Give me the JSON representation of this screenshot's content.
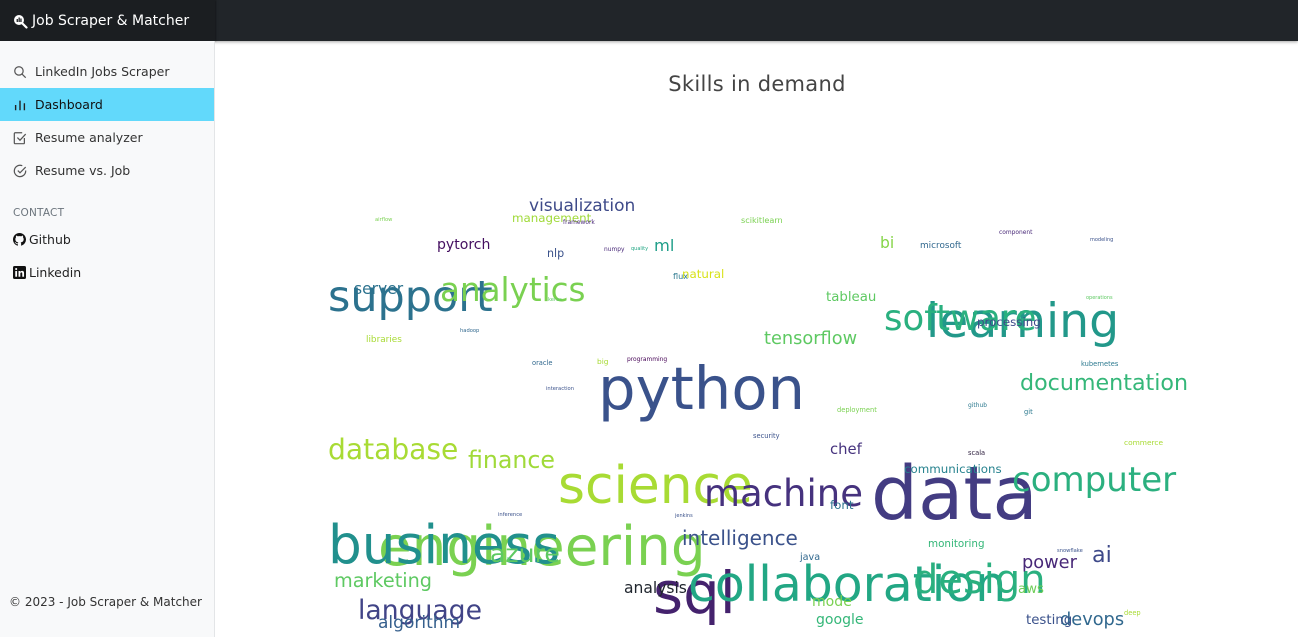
{
  "app": {
    "title": "Job Scraper & Matcher"
  },
  "sidebar": {
    "items": [
      {
        "label": "LinkedIn Jobs Scraper",
        "icon": "search-icon",
        "active": false
      },
      {
        "label": "Dashboard",
        "icon": "bar-chart-icon",
        "active": true
      },
      {
        "label": "Resume analyzer",
        "icon": "check-square-icon",
        "active": false
      },
      {
        "label": "Resume vs. Job",
        "icon": "check-circle-icon",
        "active": false
      }
    ],
    "contact_label": "CONTACT",
    "contact": [
      {
        "label": "Github",
        "icon": "github-icon"
      },
      {
        "label": "Linkedin",
        "icon": "linkedin-icon"
      }
    ],
    "footer": "© 2023 - Job Scraper & Matcher"
  },
  "main": {
    "title": "Skills in demand"
  },
  "colors": {
    "accent": "#62d9fb",
    "topbar": "#212529"
  },
  "chart_data": {
    "type": "wordcloud",
    "title": "Skills in demand",
    "words": [
      {
        "text": "data",
        "weight": 100,
        "color": "#433c82"
      },
      {
        "text": "python",
        "weight": 80,
        "color": "#3a528b"
      },
      {
        "text": "sql",
        "weight": 78,
        "color": "#44226d"
      },
      {
        "text": "engineering",
        "weight": 74,
        "color": "#7ad151"
      },
      {
        "text": "business",
        "weight": 72,
        "color": "#21908d"
      },
      {
        "text": "science",
        "weight": 70,
        "color": "#a8db34"
      },
      {
        "text": "collaboration",
        "weight": 66,
        "color": "#22a784"
      },
      {
        "text": "learning",
        "weight": 64,
        "color": "#22988a"
      },
      {
        "text": "support",
        "weight": 58,
        "color": "#2c728e"
      },
      {
        "text": "design",
        "weight": 54,
        "color": "#2ab07f"
      },
      {
        "text": "machine",
        "weight": 50,
        "color": "#46327e"
      },
      {
        "text": "software",
        "weight": 48,
        "color": "#2ab07f"
      },
      {
        "text": "computer",
        "weight": 46,
        "color": "#2bb07f"
      },
      {
        "text": "analytics",
        "weight": 44,
        "color": "#7ad151"
      },
      {
        "text": "database",
        "weight": 38,
        "color": "#a8db34"
      },
      {
        "text": "language",
        "weight": 36,
        "color": "#414487"
      },
      {
        "text": "azure",
        "weight": 34,
        "color": "#5ec962"
      },
      {
        "text": "finance",
        "weight": 32,
        "color": "#a0da39"
      },
      {
        "text": "documentation",
        "weight": 30,
        "color": "#35b779"
      },
      {
        "text": "ai",
        "weight": 30,
        "color": "#3e4989"
      },
      {
        "text": "intelligence",
        "weight": 27,
        "color": "#3b528b"
      },
      {
        "text": "marketing",
        "weight": 26,
        "color": "#5ec962"
      },
      {
        "text": "tensorflow",
        "weight": 24,
        "color": "#5ec962"
      },
      {
        "text": "power",
        "weight": 24,
        "color": "#482878"
      },
      {
        "text": "devops",
        "weight": 24,
        "color": "#31688e"
      },
      {
        "text": "visualization",
        "weight": 23,
        "color": "#3e4a89"
      },
      {
        "text": "algorithm",
        "weight": 23,
        "color": "#355f8d"
      },
      {
        "text": "ml",
        "weight": 22,
        "color": "#1f9e89"
      },
      {
        "text": "server",
        "weight": 21,
        "color": "#2c728e"
      },
      {
        "text": "analysis",
        "weight": 21,
        "color": "#20262e"
      },
      {
        "text": "bi",
        "weight": 21,
        "color": "#86d549"
      },
      {
        "text": "chef",
        "weight": 20,
        "color": "#46337e"
      },
      {
        "text": "pytorch",
        "weight": 19,
        "color": "#440f60"
      },
      {
        "text": "google",
        "weight": 19,
        "color": "#35b779"
      },
      {
        "text": "mode",
        "weight": 19,
        "color": "#7ad151"
      },
      {
        "text": "tableau",
        "weight": 18,
        "color": "#5ec962"
      },
      {
        "text": "aws",
        "weight": 18,
        "color": "#6ece58"
      },
      {
        "text": "testing",
        "weight": 18,
        "color": "#3b528b"
      },
      {
        "text": "communications",
        "weight": 16,
        "color": "#26828e"
      },
      {
        "text": "processing",
        "weight": 16,
        "color": "#3e4989"
      },
      {
        "text": "management",
        "weight": 16,
        "color": "#a0da39"
      },
      {
        "text": "natural",
        "weight": 16,
        "color": "#d8e219"
      },
      {
        "text": "font",
        "weight": 16,
        "color": "#2c728e"
      },
      {
        "text": "nlp",
        "weight": 15,
        "color": "#3b528b"
      },
      {
        "text": "monitoring",
        "weight": 14,
        "color": "#35b779"
      },
      {
        "text": "java",
        "weight": 13,
        "color": "#31688e"
      },
      {
        "text": "microsoft",
        "weight": 12,
        "color": "#31688e"
      },
      {
        "text": "flux",
        "weight": 11,
        "color": "#2a788e"
      },
      {
        "text": "scikitlearn",
        "weight": 11,
        "color": "#7ad151"
      },
      {
        "text": "commerce",
        "weight": 10,
        "color": "#a8db34"
      },
      {
        "text": "deep",
        "weight": 9,
        "color": "#a8db34"
      },
      {
        "text": "kubernetes",
        "weight": 9,
        "color": "#2a788e"
      },
      {
        "text": "git",
        "weight": 9,
        "color": "#2a788e"
      },
      {
        "text": "scala",
        "weight": 9,
        "color": "#2d1e3e"
      },
      {
        "text": "security",
        "weight": 9,
        "color": "#3b528b"
      },
      {
        "text": "big",
        "weight": 10,
        "color": "#a8db34"
      },
      {
        "text": "oracle",
        "weight": 9,
        "color": "#31688e"
      },
      {
        "text": "deployment",
        "weight": 9,
        "color": "#7ad151"
      },
      {
        "text": "github",
        "weight": 8,
        "color": "#2a788e"
      },
      {
        "text": "programming",
        "weight": 8,
        "color": "#440154"
      },
      {
        "text": "component",
        "weight": 8,
        "color": "#482878"
      },
      {
        "text": "numpy",
        "weight": 8,
        "color": "#482878"
      },
      {
        "text": "framework",
        "weight": 8,
        "color": "#482878"
      },
      {
        "text": "interaction",
        "weight": 7,
        "color": "#3b528b"
      },
      {
        "text": "keras",
        "weight": 7,
        "color": "#5ec962"
      },
      {
        "text": "airflow",
        "weight": 7,
        "color": "#7ad151"
      },
      {
        "text": "snowflake",
        "weight": 7,
        "color": "#3b528b"
      },
      {
        "text": "inference",
        "weight": 7,
        "color": "#3b528b"
      },
      {
        "text": "quality",
        "weight": 6,
        "color": "#22a784"
      },
      {
        "text": "modeling",
        "weight": 6,
        "color": "#3b528b"
      },
      {
        "text": "operations",
        "weight": 6,
        "color": "#5ec962"
      },
      {
        "text": "hadoop",
        "weight": 7,
        "color": "#31688e"
      },
      {
        "text": "libraries",
        "weight": 12,
        "color": "#a8db34"
      },
      {
        "text": "jenkins",
        "weight": 6,
        "color": "#3b528b"
      }
    ]
  }
}
